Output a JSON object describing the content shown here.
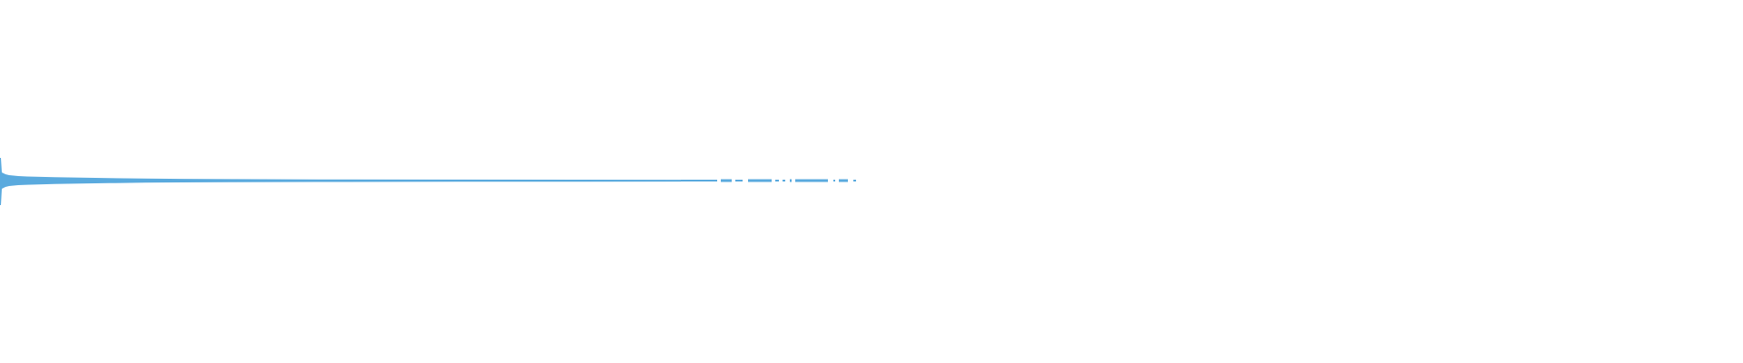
{
  "waveform": {
    "color": "#5aaade"
  }
}
